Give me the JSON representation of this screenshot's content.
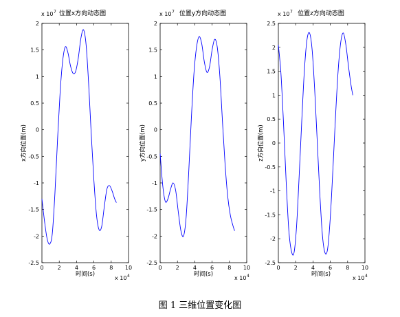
{
  "caption": "图 1  三维位置变化图",
  "chart_data": [
    {
      "type": "line",
      "title": "位置x方向动态图",
      "xlabel": "时间(s)",
      "ylabel": "x方向位置(m)",
      "x_multiplier": "x 10",
      "x_exponent": "4",
      "y_multiplier": "x 10",
      "y_exponent": "7",
      "xlim": [
        0,
        10
      ],
      "ylim": [
        -2.5,
        2
      ],
      "xticks": [
        "0",
        "2",
        "4",
        "6",
        "8",
        "10"
      ],
      "yticks": [
        "-2.5",
        "-2",
        "-1.5",
        "-1",
        "-0.5",
        "0",
        "0.5",
        "1",
        "1.5",
        "2"
      ],
      "line_color": "#0000ff",
      "x": [
        0,
        0.3,
        0.6,
        0.9,
        1.2,
        1.5,
        1.8,
        2.1,
        2.4,
        2.7,
        3.0,
        3.3,
        3.6,
        3.9,
        4.2,
        4.5,
        4.8,
        5.1,
        5.4,
        5.7,
        6.0,
        6.3,
        6.6,
        6.9,
        7.2,
        7.5,
        7.8,
        8.1,
        8.4,
        8.6
      ],
      "y": [
        -1.3,
        -1.72,
        -2.05,
        -2.15,
        -1.95,
        -1.2,
        -0.2,
        0.7,
        1.3,
        1.56,
        1.45,
        1.2,
        1.06,
        1.1,
        1.35,
        1.72,
        1.88,
        1.6,
        0.85,
        -0.1,
        -0.95,
        -1.6,
        -1.88,
        -1.82,
        -1.45,
        -1.12,
        -1.05,
        -1.15,
        -1.3,
        -1.37
      ]
    },
    {
      "type": "line",
      "title": "位置y方向动态图",
      "xlabel": "时间(s)",
      "ylabel": "y方向位置(m)",
      "x_multiplier": "x 10",
      "x_exponent": "4",
      "y_multiplier": "x 10",
      "y_exponent": "7",
      "xlim": [
        0,
        10
      ],
      "ylim": [
        -2.5,
        2
      ],
      "xticks": [
        "0",
        "2",
        "4",
        "6",
        "8",
        "10"
      ],
      "yticks": [
        "-2.5",
        "-2",
        "-1.5",
        "-1",
        "-0.5",
        "0",
        "0.5",
        "1",
        "1.5",
        "2"
      ],
      "line_color": "#0000ff",
      "x": [
        0,
        0.3,
        0.6,
        0.9,
        1.2,
        1.5,
        1.8,
        2.1,
        2.4,
        2.7,
        3.0,
        3.3,
        3.6,
        3.9,
        4.2,
        4.5,
        4.8,
        5.1,
        5.4,
        5.7,
        6.0,
        6.3,
        6.6,
        6.9,
        7.2,
        7.5,
        7.8,
        8.1,
        8.4,
        8.6
      ],
      "y": [
        -0.45,
        -1.05,
        -1.35,
        -1.3,
        -1.12,
        -1.0,
        -1.15,
        -1.55,
        -1.9,
        -2.0,
        -1.65,
        -0.8,
        0.2,
        1.05,
        1.55,
        1.75,
        1.62,
        1.28,
        1.08,
        1.18,
        1.5,
        1.7,
        1.55,
        1.0,
        0.15,
        -0.65,
        -1.25,
        -1.6,
        -1.8,
        -1.9
      ]
    },
    {
      "type": "line",
      "title": "位置z方向动态图",
      "xlabel": "时间(s)",
      "ylabel": "z方向位置(m)",
      "x_multiplier": "x 10",
      "x_exponent": "4",
      "y_multiplier": "x 10",
      "y_exponent": "7",
      "xlim": [
        0,
        10
      ],
      "ylim": [
        -2.5,
        2.5
      ],
      "xticks": [
        "0",
        "2",
        "4",
        "6",
        "8",
        "10"
      ],
      "yticks": [
        "-2.5",
        "-2",
        "-1.5",
        "-1",
        "-0.5",
        "0",
        "0.5",
        "1",
        "1.5",
        "2",
        "2.5"
      ],
      "line_color": "#0000ff",
      "x": [
        0,
        0.3,
        0.6,
        0.9,
        1.2,
        1.5,
        1.8,
        2.1,
        2.4,
        2.7,
        3.0,
        3.3,
        3.6,
        3.9,
        4.2,
        4.5,
        4.8,
        5.1,
        5.4,
        5.7,
        6.0,
        6.3,
        6.6,
        6.9,
        7.2,
        7.5,
        7.8,
        8.1,
        8.4,
        8.6
      ],
      "y": [
        2.05,
        1.45,
        0.4,
        -0.8,
        -1.8,
        -2.25,
        -2.3,
        -1.75,
        -0.7,
        0.45,
        1.5,
        2.15,
        2.3,
        1.95,
        1.1,
        0.0,
        -1.1,
        -1.95,
        -2.3,
        -2.2,
        -1.55,
        -0.55,
        0.55,
        1.5,
        2.1,
        2.3,
        2.05,
        1.6,
        1.2,
        1.0
      ]
    }
  ]
}
